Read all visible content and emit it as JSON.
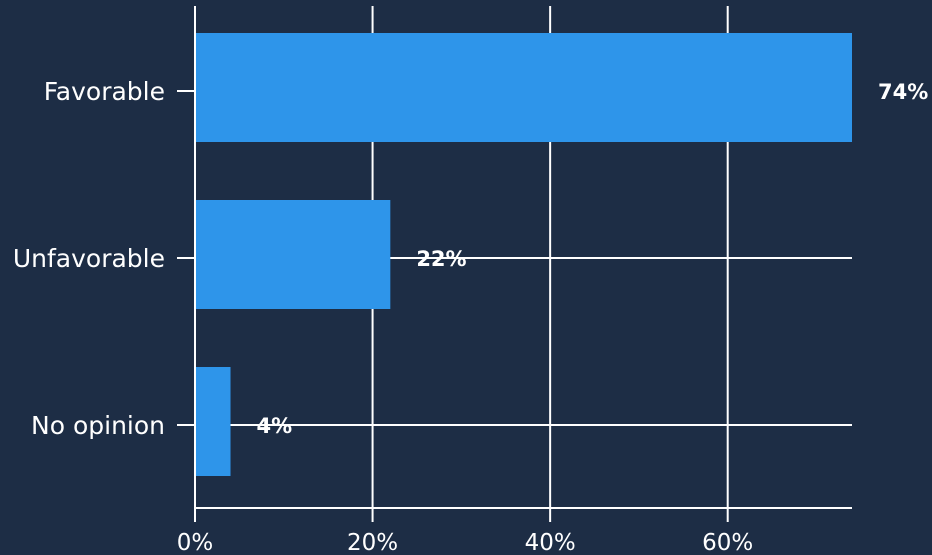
{
  "chart_data": {
    "type": "bar",
    "orientation": "horizontal",
    "categories": [
      "Favorable",
      "Unfavorable",
      "No opinion"
    ],
    "values": [
      74,
      22,
      4
    ],
    "value_labels": [
      "74%",
      "22%",
      "4%"
    ],
    "x_ticks": [
      {
        "value": 0,
        "label": "0%"
      },
      {
        "value": 20,
        "label": "20%"
      },
      {
        "value": 40,
        "label": "40%"
      },
      {
        "value": 60,
        "label": "60%"
      }
    ],
    "xlim": [
      0,
      74
    ],
    "grid": true,
    "title": "",
    "xlabel": "",
    "ylabel": "",
    "colors": {
      "background": "#1d2d45",
      "bar": "#2e95ea",
      "grid": "#ffffff",
      "text": "#ffffff"
    }
  }
}
